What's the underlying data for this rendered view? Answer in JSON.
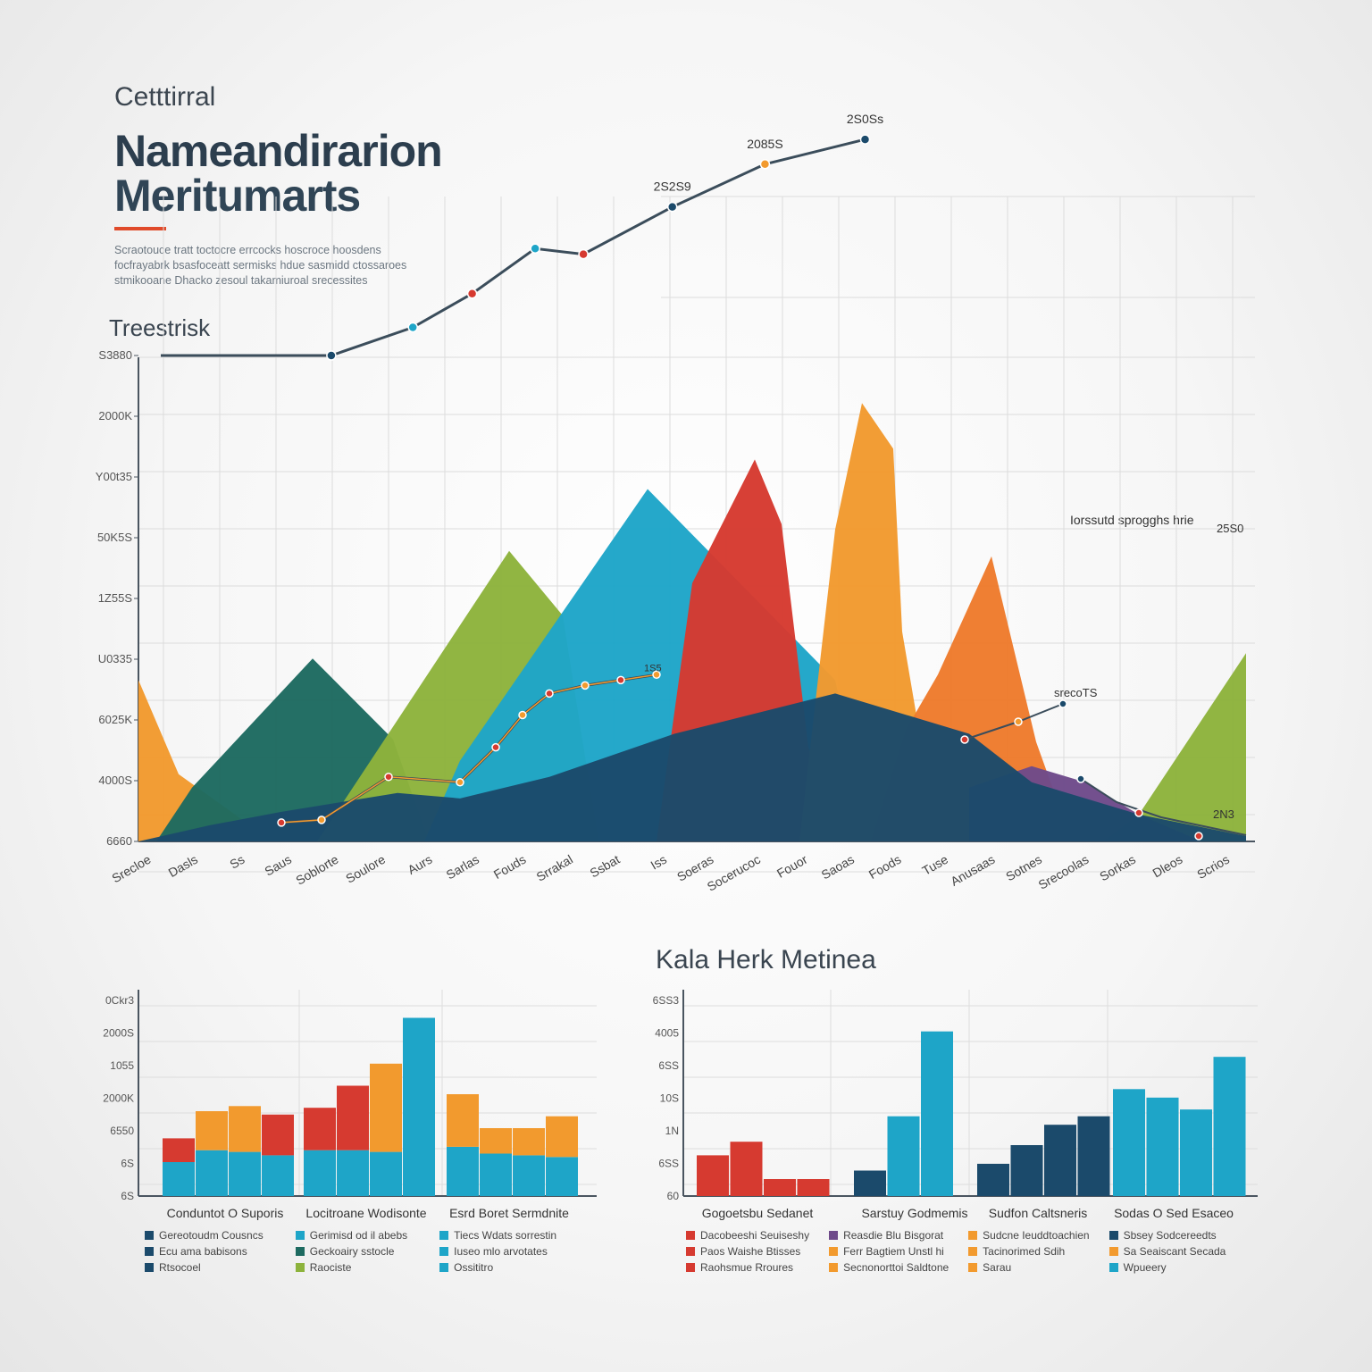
{
  "header": {
    "kicker": "Cetttirral",
    "title_line1": "Nameandirarion",
    "title_line2": "Meritumarts",
    "blurb": "Scraotouce tratt toctocre errcocks hoscroce hoosdens focfrayabrk bsasfoceatt sermisks hdue sasmidd ctossaroes stmikooane Dhacko zesoul takamiuroal srecessites"
  },
  "section_label": "Treestrisk",
  "legend_note": "Iorssutd sprogghs hrie",
  "kpi_title": "Kala Herk Metinea",
  "colors": {
    "orange": "#f29a2e",
    "darkorange": "#ee7b2c",
    "green": "#8db33c",
    "teal": "#1d6a60",
    "navy": "#1b4a6b",
    "blue": "#1ea5c8",
    "red": "#d63a30",
    "purple": "#6e4a8a",
    "line": "#3b4d5b"
  },
  "chart_data": [
    {
      "type": "area",
      "yticks": [
        "6660",
        "4000S",
        "6025K",
        "U0335",
        "1Z55S",
        "50K5S",
        "Y00t35",
        "2000K",
        "S3880"
      ],
      "top_line": {
        "x": [
          0,
          230,
          340,
          420,
          505,
          570,
          690,
          815,
          950
        ],
        "y": [
          100,
          100,
          125,
          155,
          195,
          190,
          232,
          270,
          292
        ],
        "labels": [
          "",
          "",
          "",
          "",
          "",
          "",
          "2S2S9",
          "2085S",
          "2S0Ss"
        ]
      },
      "areas": [
        {
          "name": "orange_left",
          "x": [
            0,
            45,
            125
          ],
          "y": [
            60,
            25,
            6
          ]
        },
        {
          "name": "teal",
          "x": [
            60,
            195,
            285
          ],
          "y": [
            20,
            68,
            38
          ]
        },
        {
          "name": "green_mid",
          "x": [
            240,
            415,
            475
          ],
          "y": [
            20,
            108,
            84
          ]
        },
        {
          "name": "blue",
          "x": [
            360,
            570,
            780
          ],
          "y": [
            30,
            131,
            60
          ]
        },
        {
          "name": "red",
          "x": [
            620,
            690,
            720,
            750
          ],
          "y": [
            96,
            142,
            118,
            35
          ]
        },
        {
          "name": "orange_tall",
          "x": [
            780,
            810,
            845,
            855
          ],
          "y": [
            116,
            163,
            146,
            78
          ]
        },
        {
          "name": "darkorange",
          "x": [
            860,
            895,
            955,
            1005
          ],
          "y": [
            42,
            62,
            106,
            37
          ]
        },
        {
          "name": "green_right",
          "x": [
            1120,
            1240
          ],
          "y": [
            10,
            70
          ]
        }
      ],
      "inner_line": {
        "x": [
          160,
          205,
          280,
          360,
          400,
          430,
          460,
          500,
          540,
          580
        ],
        "y": [
          7,
          8,
          24,
          22,
          35,
          47,
          55,
          58,
          60,
          62
        ],
        "label": "1S5"
      },
      "navy_base": {
        "x": [
          0,
          80,
          160,
          290,
          360,
          460,
          600,
          780,
          930,
          1000,
          1120,
          1240
        ],
        "y": [
          0,
          6,
          11,
          18,
          16,
          24,
          40,
          55,
          40,
          22,
          10,
          2
        ]
      },
      "purple_band": {
        "x": [
          930,
          1000,
          1060,
          1120,
          1190
        ],
        "y": [
          20,
          28,
          22,
          10,
          0
        ]
      },
      "right_markers": {
        "labels": [
          "srecoTS",
          "25S0",
          "2N3"
        ]
      },
      "xtick_labels": [
        "Srecloe",
        "Dasls",
        "Ss",
        "Saus",
        "Soblorte",
        "Soulore",
        "Aurs",
        "Sarlas",
        "Fouds",
        "Srrakal",
        "Ssbat",
        "Iss",
        "Soeras",
        "Socerucoc",
        "Fouor",
        "Saoas",
        "Foods",
        "Tuse",
        "Anusaas",
        "Sotnes",
        "Srecoolas",
        "Sorkas",
        "Dleos",
        "Scrios"
      ]
    },
    {
      "type": "bar",
      "stacked": true,
      "yticks": [
        "6S",
        "6S",
        "6550",
        "2000K",
        "1055",
        "2000S",
        "0Ckr3"
      ],
      "groups": [
        {
          "name": "Conduntot O Suporis",
          "bars": [
            {
              "blue": 20,
              "orange": 0,
              "red": 14
            },
            {
              "blue": 27,
              "orange": 23,
              "red": 0
            },
            {
              "blue": 26,
              "orange": 27,
              "red": 0
            },
            {
              "blue": 24,
              "orange": 0,
              "red": 24
            }
          ]
        },
        {
          "name": "Locitroane Wodisonte",
          "bars": [
            {
              "blue": 27,
              "orange": 0,
              "red": 25
            },
            {
              "blue": 27,
              "orange": 0,
              "red": 38
            },
            {
              "blue": 26,
              "orange": 52,
              "red": 0
            },
            {
              "blue": 105,
              "orange": 0,
              "red": 0
            }
          ]
        },
        {
          "name": "Esrd Boret Sermdnite",
          "bars": [
            {
              "blue": 29,
              "orange": 31,
              "red": 0
            },
            {
              "blue": 25,
              "orange": 15,
              "red": 0
            },
            {
              "blue": 24,
              "orange": 16,
              "red": 0
            },
            {
              "blue": 23,
              "orange": 24,
              "red": 0
            }
          ]
        }
      ],
      "legends": [
        [
          {
            "color": "navy",
            "label": "Gereotoudm Cousncs"
          },
          {
            "color": "navy",
            "label": "Ecu ama babisons"
          },
          {
            "color": "navy",
            "label": "Rtsocoel"
          }
        ],
        [
          {
            "color": "blue",
            "label": "Gerimisd od il abebs"
          },
          {
            "color": "teal",
            "label": "Geckoairy sstocle"
          },
          {
            "color": "green",
            "label": "Raociste"
          }
        ],
        [
          {
            "color": "blue",
            "label": "Tiecs Wdats sorrestin"
          },
          {
            "color": "blue",
            "label": "Iuseo mlo arvotates"
          },
          {
            "color": "blue",
            "label": "Ossititro"
          }
        ]
      ]
    },
    {
      "type": "bar",
      "yticks": [
        "60",
        "6SS",
        "1N",
        "10S",
        "6SS",
        "4005",
        "6SS3"
      ],
      "groups": [
        {
          "name": "Gogoetsbu Sedanet",
          "colors": [
            "red",
            "red",
            "red",
            "red"
          ],
          "values": [
            24,
            32,
            10,
            10
          ]
        },
        {
          "name": "Sarstuy Godmemis",
          "colors": [
            "navy",
            "blue",
            "blue"
          ],
          "values": [
            15,
            47,
            97
          ]
        },
        {
          "name": "Sudfon Caltsneris",
          "colors": [
            "navy",
            "navy",
            "navy",
            "navy"
          ],
          "values": [
            19,
            30,
            42,
            47
          ]
        },
        {
          "name": "Sodas O Sed Esaceo",
          "colors": [
            "blue",
            "blue",
            "blue",
            "blue"
          ],
          "values": [
            63,
            58,
            51,
            82
          ]
        }
      ],
      "legends": [
        [
          {
            "color": "red",
            "label": "Dacobeeshi Seuiseshy"
          },
          {
            "color": "red",
            "label": "Paos Waishe Btisses"
          },
          {
            "color": "red",
            "label": "Raohsmue Rroures"
          }
        ],
        [
          {
            "color": "purple",
            "label": "Reasdie Blu Bisgorat"
          },
          {
            "color": "orange",
            "label": "Ferr Bagtiem Unstl hi"
          },
          {
            "color": "orange",
            "label": "Secnonorttoi Saldtone"
          }
        ],
        [
          {
            "color": "orange",
            "label": "Sudcne Ieuddtoachien"
          },
          {
            "color": "orange",
            "label": "Tacinorimed Sdih"
          },
          {
            "color": "orange",
            "label": "Sarau"
          }
        ],
        [
          {
            "color": "navy",
            "label": "Sbsey Sodcereedts"
          },
          {
            "color": "orange",
            "label": "Sa Seaiscant Secada"
          },
          {
            "color": "blue",
            "label": "Wpueery"
          }
        ]
      ]
    }
  ]
}
